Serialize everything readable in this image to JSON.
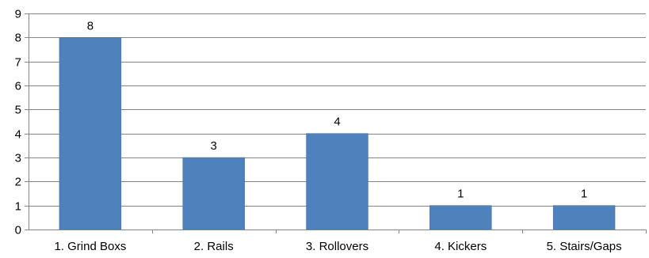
{
  "chart_data": {
    "type": "bar",
    "categories": [
      "1. Grind Boxs",
      "2. Rails",
      "3. Rollovers",
      "4. Kickers",
      "5. Stairs/Gaps"
    ],
    "values": [
      8,
      3,
      4,
      1,
      1
    ],
    "data_labels": [
      "8",
      "3",
      "4",
      "1",
      "1"
    ],
    "title": "",
    "xlabel": "",
    "ylabel": "",
    "ylim": [
      0,
      9
    ],
    "yticks": [
      "0",
      "1",
      "2",
      "3",
      "4",
      "5",
      "6",
      "7",
      "8",
      "9"
    ],
    "grid": true,
    "legend": "none",
    "colors": {
      "bar": "#4f81bd",
      "bar_edge": "#3a6aa5",
      "grid": "#868686",
      "axis": "#868686"
    }
  }
}
